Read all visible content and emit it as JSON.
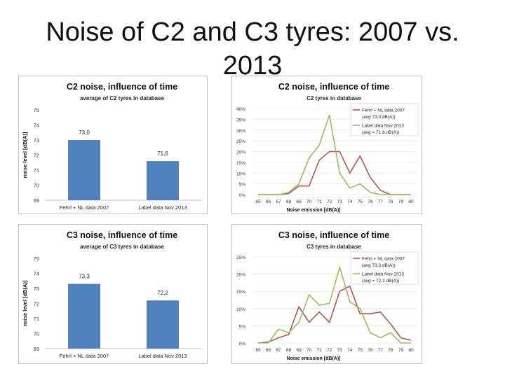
{
  "slide": {
    "title": "Noise of C2 and C3 tyres: 2007 vs. 2013"
  },
  "colors": {
    "bar": "#4f81bd",
    "series_2007": "#c0504d",
    "series_2013": "#9bbb59",
    "grid": "#d9d9d9"
  },
  "chart_data": [
    {
      "type": "bar",
      "title": "C2 noise, influence of time",
      "subtitle": "average of C2 tyres  in database",
      "ylabel": "noise level [dB(A)]",
      "xlabel": "",
      "categories": [
        "Fehrl + NL data 2007",
        "Label data Nov 2013"
      ],
      "values": [
        73.0,
        71.6
      ],
      "value_labels": [
        "73,0",
        "71,6"
      ],
      "ylim": [
        69,
        75
      ],
      "yticks": [
        69,
        70,
        71,
        72,
        73,
        74,
        75
      ]
    },
    {
      "type": "line",
      "title": "C2 noise, influence of time",
      "subtitle": "C2 tyres  in database",
      "xlabel": "Noise emission [dB(A)]",
      "ylabel": "",
      "x": [
        65,
        66,
        67,
        68,
        69,
        70,
        71,
        72,
        73,
        74,
        75,
        76,
        77,
        78,
        79,
        80
      ],
      "ylim": [
        0,
        40
      ],
      "yticks": [
        "0%",
        "5%",
        "10%",
        "15%",
        "20%",
        "25%",
        "30%",
        "35%",
        "40%"
      ],
      "series": [
        {
          "name": "Fehrl + NL data 2007",
          "note": "(avg    73,0 dB(A))",
          "values": [
            0,
            0,
            0,
            0.5,
            4,
            4,
            16,
            20,
            20,
            10,
            18,
            8,
            2,
            0,
            0,
            0
          ]
        },
        {
          "name": "Label data Nov 2013",
          "note": "(avg = 71,6 dB(A))",
          "values": [
            0,
            0,
            0,
            1,
            5,
            17,
            23,
            37,
            10,
            3,
            5,
            1,
            0,
            0,
            0,
            0
          ]
        }
      ]
    },
    {
      "type": "bar",
      "title": "C3 noise, influence of time",
      "subtitle": "average of C3 tyres  in database",
      "ylabel": "noise level [dB(A)]",
      "xlabel": "",
      "categories": [
        "Fehrl + NL data 2007",
        "Label data Nov 2013"
      ],
      "values": [
        73.3,
        72.2
      ],
      "value_labels": [
        "73,3",
        "72,2"
      ],
      "ylim": [
        69,
        75
      ],
      "yticks": [
        69,
        70,
        71,
        72,
        73,
        74,
        75
      ]
    },
    {
      "type": "line",
      "title": "C3 noise, influence of time",
      "subtitle": "C3 tyres in database",
      "xlabel": "Noise emission [dB(A)]",
      "ylabel": "",
      "x": [
        65,
        66,
        67,
        68,
        69,
        70,
        71,
        72,
        73,
        74,
        75,
        76,
        77,
        78,
        79,
        80
      ],
      "ylim": [
        0,
        25
      ],
      "yticks": [
        "0%",
        "5%",
        "10%",
        "15%",
        "20%",
        "25%"
      ],
      "series": [
        {
          "name": "Fehrl + NL data 2007",
          "note": "(avg    73,3 dB(A))",
          "values": [
            0,
            0.3,
            1.5,
            2.5,
            10.5,
            6,
            9,
            6,
            15,
            16.5,
            8.5,
            8.5,
            9,
            5.5,
            1.5,
            0.8
          ]
        },
        {
          "name": "Label data Nov 2013",
          "note": "(avg = 72,2 dB(A))",
          "values": [
            0,
            0,
            4,
            3,
            6,
            14,
            11,
            11.5,
            22,
            12,
            10,
            3,
            1.5,
            3,
            0,
            0
          ]
        }
      ]
    }
  ]
}
